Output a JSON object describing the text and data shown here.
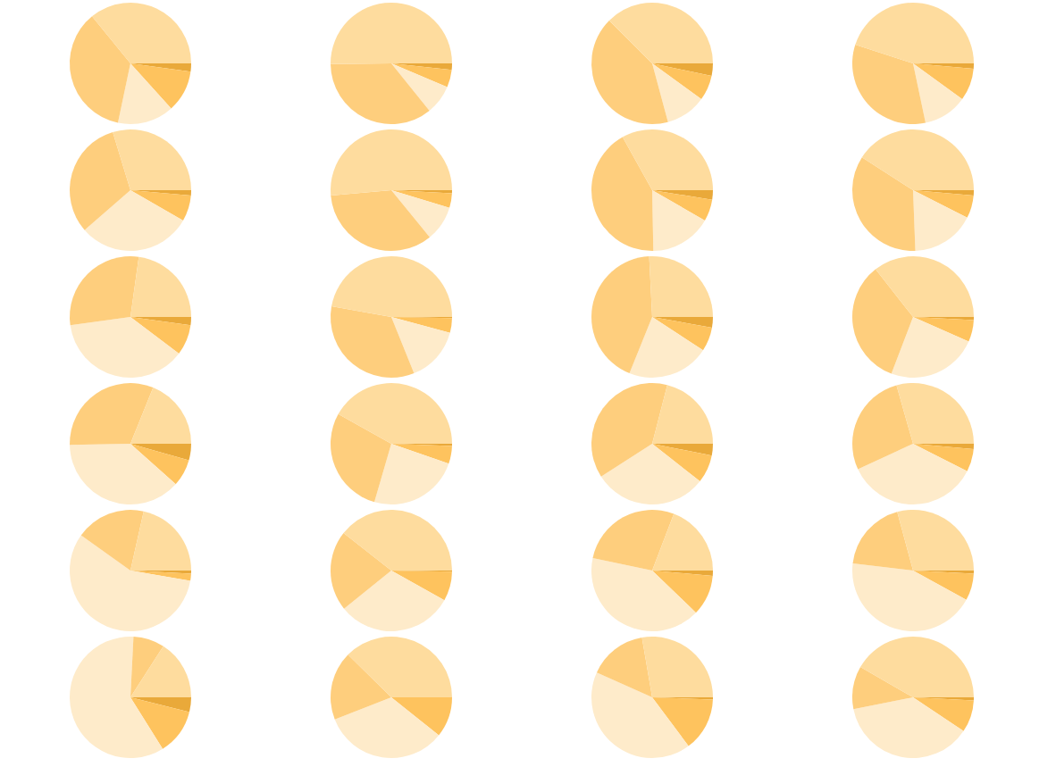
{
  "chart_data": [
    {
      "type": "pie",
      "categories": [
        null,
        null,
        null,
        null,
        null
      ],
      "values": [
        2.2,
        11.1,
        15,
        35.8,
        35.9
      ],
      "colors": [
        "#e9a93a",
        "#fec35e",
        "#feebca",
        "#fece7d",
        "#fedc9e"
      ]
    },
    {
      "type": "pie",
      "categories": [
        null,
        null,
        null,
        null,
        null
      ],
      "values": [
        1.7,
        4.7,
        7.8,
        35.6,
        50.2
      ],
      "colors": [
        "#e9a93a",
        "#fec35e",
        "#feebca",
        "#fece7d",
        "#fedc9e"
      ]
    },
    {
      "type": "pie",
      "categories": [
        null,
        null,
        null,
        null,
        null
      ],
      "values": [
        3.3,
        6.7,
        10.8,
        41.7,
        37.5
      ],
      "colors": [
        "#e9a93a",
        "#fec35e",
        "#feebca",
        "#fece7d",
        "#fedc9e"
      ]
    },
    {
      "type": "pie",
      "categories": [
        null,
        null,
        null,
        null,
        null
      ],
      "values": [
        1.4,
        8.6,
        11.7,
        33.3,
        45
      ],
      "colors": [
        "#e9a93a",
        "#fec35e",
        "#feebca",
        "#fece7d",
        "#fedc9e"
      ]
    },
    {
      "type": "pie",
      "categories": [
        null,
        null,
        null,
        null,
        null
      ],
      "values": [
        1.4,
        6.9,
        30.3,
        31.7,
        29.7
      ],
      "colors": [
        "#e9a93a",
        "#fec35e",
        "#feebca",
        "#fece7d",
        "#fedc9e"
      ]
    },
    {
      "type": "pie",
      "categories": [
        null,
        null,
        null,
        null,
        null
      ],
      "values": [
        0.8,
        3.9,
        9.4,
        34.5,
        51.4
      ],
      "colors": [
        "#e9a93a",
        "#fec35e",
        "#feebca",
        "#fece7d",
        "#fedc9e"
      ]
    },
    {
      "type": "pie",
      "categories": [
        null,
        null,
        null,
        null,
        null
      ],
      "values": [
        2.5,
        5.8,
        16.4,
        42.2,
        33.1
      ],
      "colors": [
        "#e9a93a",
        "#fec35e",
        "#feebca",
        "#fece7d",
        "#fedc9e"
      ]
    },
    {
      "type": "pie",
      "categories": [
        null,
        null,
        null,
        null,
        null
      ],
      "values": [
        1.4,
        6.1,
        16.9,
        34.7,
        40.9
      ],
      "colors": [
        "#e9a93a",
        "#fec35e",
        "#feebca",
        "#fece7d",
        "#fedc9e"
      ]
    },
    {
      "type": "pie",
      "categories": [
        null,
        null,
        null,
        null,
        null
      ],
      "values": [
        2.2,
        8.1,
        37.5,
        29.4,
        22.8
      ],
      "colors": [
        "#e9a93a",
        "#fec35e",
        "#feebca",
        "#fece7d",
        "#fedc9e"
      ]
    },
    {
      "type": "pie",
      "categories": [
        null,
        null,
        null,
        null,
        null
      ],
      "values": [
        0.3,
        3.9,
        14.7,
        33.9,
        47.2
      ],
      "colors": [
        "#e9a93a",
        "#fec35e",
        "#feebca",
        "#fece7d",
        "#fedc9e"
      ]
    },
    {
      "type": "pie",
      "categories": [
        null,
        null,
        null,
        null,
        null
      ],
      "values": [
        2.8,
        6.4,
        21.9,
        43.1,
        25.8
      ],
      "colors": [
        "#e9a93a",
        "#fec35e",
        "#feebca",
        "#fece7d",
        "#fedc9e"
      ]
    },
    {
      "type": "pie",
      "categories": [
        null,
        null,
        null,
        null,
        null
      ],
      "values": [
        0.8,
        5.8,
        24.2,
        33.6,
        35.6
      ],
      "colors": [
        "#e9a93a",
        "#fec35e",
        "#feebca",
        "#fece7d",
        "#fedc9e"
      ]
    },
    {
      "type": "pie",
      "categories": [
        null,
        null,
        null,
        null,
        null
      ],
      "values": [
        4.4,
        7.2,
        38.1,
        31.4,
        18.9
      ],
      "colors": [
        "#e9a93a",
        "#fec35e",
        "#feebca",
        "#fece7d",
        "#fedc9e"
      ]
    },
    {
      "type": "pie",
      "categories": [
        null,
        null,
        null,
        null,
        null
      ],
      "values": [
        0.6,
        4.7,
        24.2,
        28.6,
        41.9
      ],
      "colors": [
        "#e9a93a",
        "#fec35e",
        "#feebca",
        "#fece7d",
        "#fedc9e"
      ]
    },
    {
      "type": "pie",
      "categories": [
        null,
        null,
        null,
        null,
        null
      ],
      "values": [
        3.1,
        7.5,
        30.3,
        38.1,
        21
      ],
      "colors": [
        "#e9a93a",
        "#fec35e",
        "#feebca",
        "#fece7d",
        "#fedc9e"
      ]
    },
    {
      "type": "pie",
      "categories": [
        null,
        null,
        null,
        null,
        null
      ],
      "values": [
        1.4,
        6.1,
        35.6,
        27.5,
        29.4
      ],
      "colors": [
        "#e9a93a",
        "#fec35e",
        "#feebca",
        "#fece7d",
        "#fedc9e"
      ]
    },
    {
      "type": "pie",
      "categories": [
        null,
        null,
        null,
        null,
        null
      ],
      "values": [
        0.8,
        1.9,
        57.2,
        18.6,
        21.5
      ],
      "colors": [
        "#e9a93a",
        "#fec35e",
        "#feebca",
        "#fece7d",
        "#fedc9e"
      ]
    },
    {
      "type": "pie",
      "categories": [
        null,
        null,
        null,
        null,
        null
      ],
      "values": [
        0.3,
        7.8,
        31.1,
        21.4,
        39.4
      ],
      "colors": [
        "#e9a93a",
        "#fec35e",
        "#feebca",
        "#fece7d",
        "#fedc9e"
      ]
    },
    {
      "type": "pie",
      "categories": [
        null,
        null,
        null,
        null,
        null
      ],
      "values": [
        1.4,
        10.8,
        41.1,
        27.5,
        19.2
      ],
      "colors": [
        "#e9a93a",
        "#fec35e",
        "#feebca",
        "#fece7d",
        "#fedc9e"
      ]
    },
    {
      "type": "pie",
      "categories": [
        null,
        null,
        null,
        null,
        null
      ],
      "values": [
        0.8,
        7.2,
        43.9,
        18.9,
        29.2
      ],
      "colors": [
        "#e9a93a",
        "#fec35e",
        "#feebca",
        "#fece7d",
        "#fedc9e"
      ]
    },
    {
      "type": "pie",
      "categories": [
        null,
        null,
        null,
        null,
        null
      ],
      "values": [
        3.9,
        12.2,
        59.7,
        8.3,
        15.9
      ],
      "colors": [
        "#e9a93a",
        "#fec35e",
        "#feebca",
        "#fece7d",
        "#fedc9e"
      ]
    },
    {
      "type": "pie",
      "categories": [
        null,
        null,
        null,
        null,
        null
      ],
      "values": [
        null,
        10.7,
        33.3,
        18.3,
        37.6
      ],
      "colors": [
        "#e9a93a",
        "#fec35e",
        "#feebca",
        "#fece7d",
        "#fedc9e"
      ]
    },
    {
      "type": "pie",
      "categories": [
        null,
        null,
        null,
        null,
        null
      ],
      "values": [
        0.6,
        14.2,
        41.9,
        15.6,
        27.7
      ],
      "colors": [
        "#e9a93a",
        "#fec35e",
        "#feebca",
        "#fece7d",
        "#fedc9e"
      ]
    },
    {
      "type": "pie",
      "categories": [
        null,
        null,
        null,
        null,
        null
      ],
      "values": [
        0.8,
        8.6,
        37.5,
        11.4,
        41.7
      ],
      "colors": [
        "#e9a93a",
        "#fec35e",
        "#feebca",
        "#fece7d",
        "#fedc9e"
      ]
    }
  ]
}
